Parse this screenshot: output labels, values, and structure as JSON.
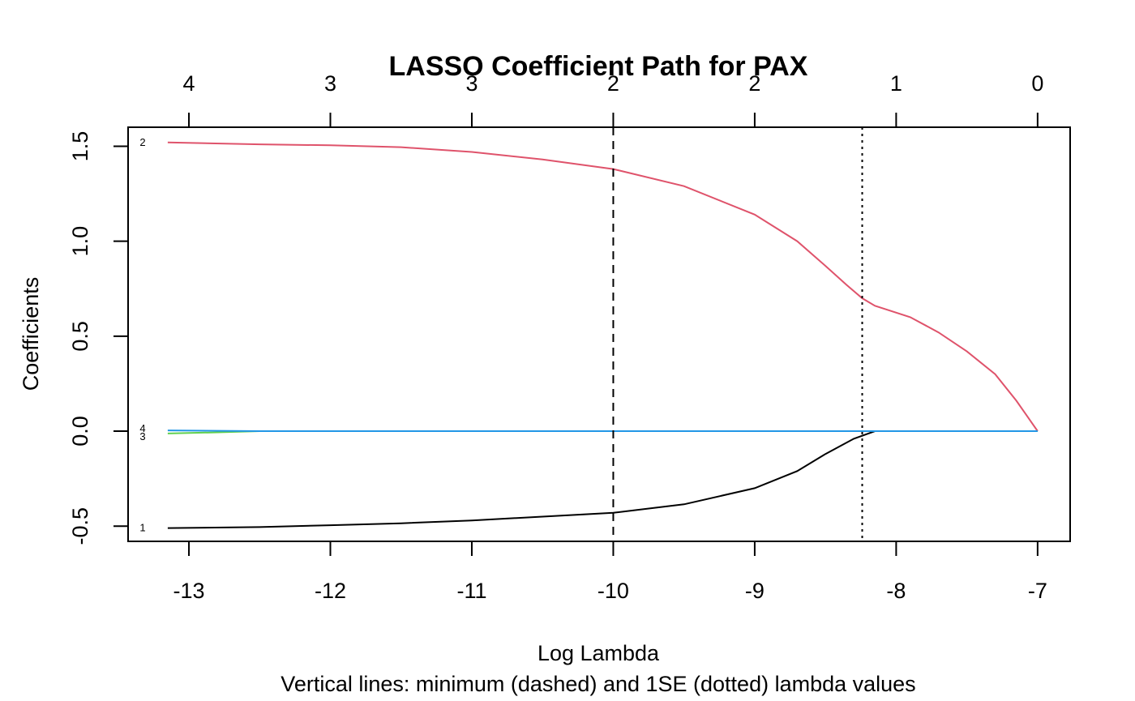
{
  "chart_data": {
    "type": "line",
    "title": "LASSO Coefficient Path for PAX",
    "xlabel": "Log Lambda",
    "subtitle": "Vertical lines: minimum (dashed) and 1SE (dotted) lambda values",
    "ylabel": "Coefficients",
    "xlim": [
      -13.43,
      -6.77
    ],
    "ylim": [
      -0.58,
      1.6
    ],
    "x_ticks": [
      -13,
      -12,
      -11,
      -10,
      -9,
      -8,
      -7
    ],
    "x_tick_labels": [
      "-13",
      "-12",
      "-11",
      "-10",
      "-9",
      "-8",
      "-7"
    ],
    "y_ticks": [
      -0.5,
      0.0,
      0.5,
      1.0,
      1.5
    ],
    "y_tick_labels": [
      "-0.5",
      "0.0",
      "0.5",
      "1.0",
      "1.5"
    ],
    "top_axis": {
      "x": [
        -13,
        -12,
        -11,
        -10,
        -9,
        -8,
        -7
      ],
      "labels": [
        "4",
        "3",
        "3",
        "2",
        "2",
        "1",
        "0"
      ]
    },
    "vlines": [
      {
        "x": -10.0,
        "style": "dashed"
      },
      {
        "x": -8.24,
        "style": "dotted"
      }
    ],
    "grid": false,
    "series": [
      {
        "label": "1",
        "color": "#000000",
        "points": [
          [
            -13.15,
            -0.51
          ],
          [
            -12.5,
            -0.505
          ],
          [
            -12.0,
            -0.495
          ],
          [
            -11.5,
            -0.485
          ],
          [
            -11.0,
            -0.47
          ],
          [
            -10.5,
            -0.45
          ],
          [
            -10.0,
            -0.43
          ],
          [
            -9.5,
            -0.385
          ],
          [
            -9.0,
            -0.3
          ],
          [
            -8.7,
            -0.21
          ],
          [
            -8.5,
            -0.12
          ],
          [
            -8.3,
            -0.04
          ],
          [
            -8.15,
            0.0
          ],
          [
            -7.0,
            0.0
          ]
        ]
      },
      {
        "label": "2",
        "color": "#DF536B",
        "points": [
          [
            -13.15,
            1.52
          ],
          [
            -12.5,
            1.51
          ],
          [
            -12.0,
            1.505
          ],
          [
            -11.5,
            1.495
          ],
          [
            -11.0,
            1.47
          ],
          [
            -10.5,
            1.43
          ],
          [
            -10.0,
            1.38
          ],
          [
            -9.5,
            1.29
          ],
          [
            -9.0,
            1.14
          ],
          [
            -8.7,
            1.0
          ],
          [
            -8.5,
            0.87
          ],
          [
            -8.35,
            0.77
          ],
          [
            -8.24,
            0.7
          ],
          [
            -8.15,
            0.66
          ],
          [
            -7.9,
            0.6
          ],
          [
            -7.7,
            0.52
          ],
          [
            -7.5,
            0.42
          ],
          [
            -7.3,
            0.3
          ],
          [
            -7.15,
            0.16
          ],
          [
            -7.0,
            0.0
          ]
        ]
      },
      {
        "label": "3",
        "color": "#61D04F",
        "points": [
          [
            -13.15,
            -0.012
          ],
          [
            -12.8,
            -0.006
          ],
          [
            -12.5,
            0.0
          ],
          [
            -7.0,
            0.0
          ]
        ]
      },
      {
        "label": "4",
        "color": "#2297E6",
        "points": [
          [
            -13.15,
            0.004
          ],
          [
            -12.5,
            0.0
          ],
          [
            -7.0,
            0.0
          ]
        ]
      }
    ]
  }
}
